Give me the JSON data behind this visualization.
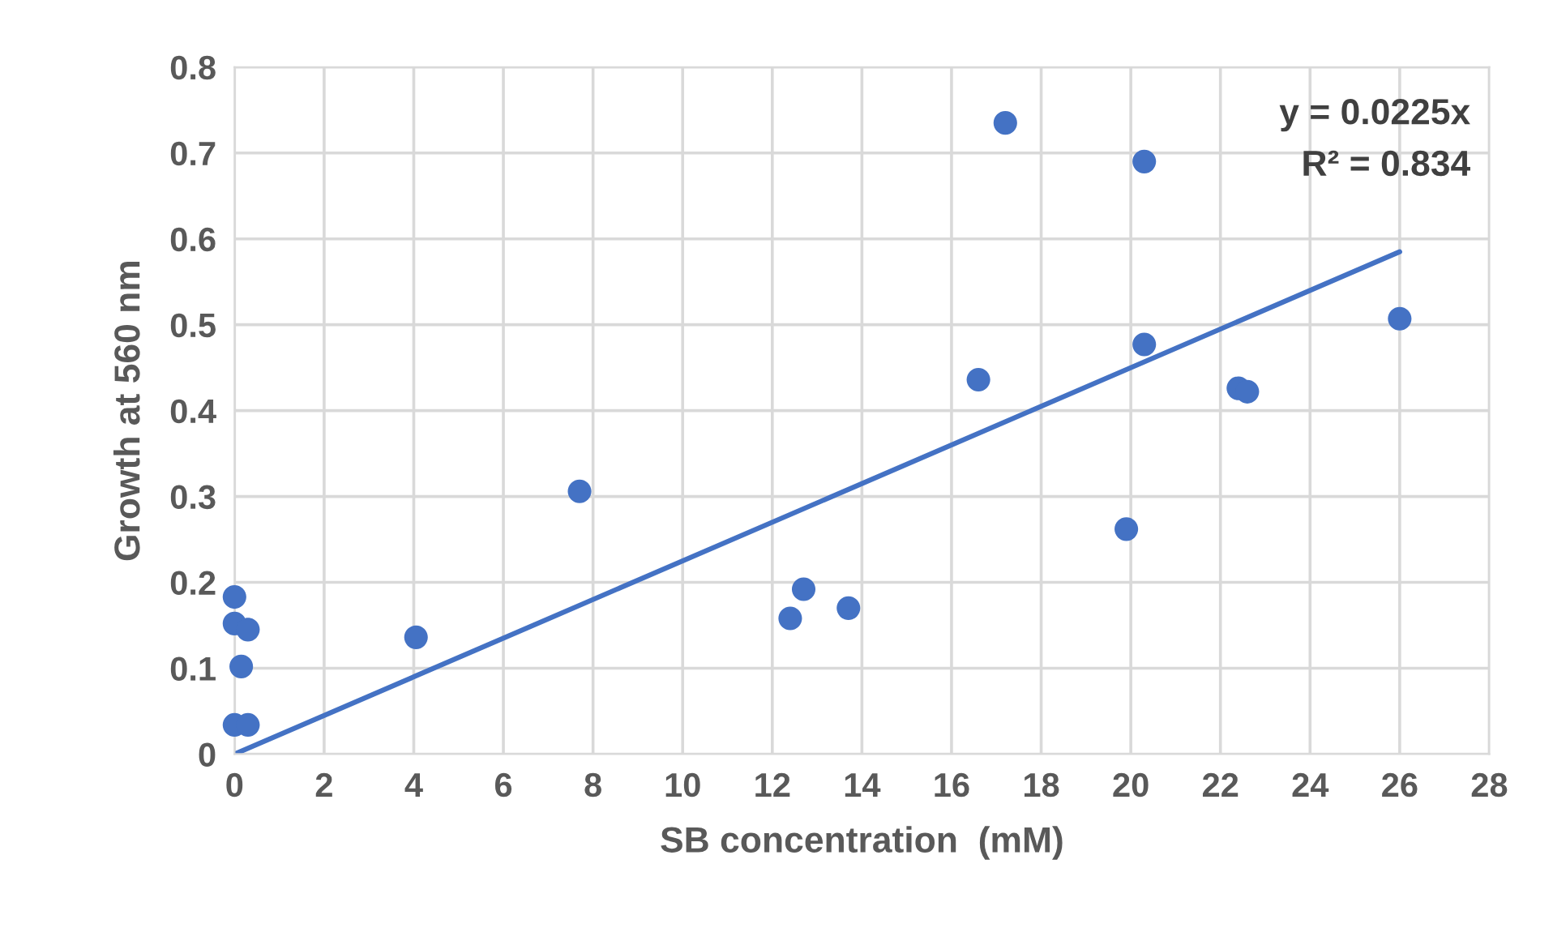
{
  "chart_data": {
    "type": "scatter",
    "xlabel": "SB concentration  (mM)",
    "ylabel": "Growth at 560 nm",
    "xlim": [
      0,
      28
    ],
    "xticks": [
      0,
      2,
      4,
      6,
      8,
      10,
      12,
      14,
      16,
      18,
      20,
      22,
      24,
      26,
      28
    ],
    "ylim": [
      0,
      0.8
    ],
    "yticks": [
      0,
      0.1,
      0.2,
      0.3,
      0.4,
      0.5,
      0.6,
      0.7,
      0.8
    ],
    "grid": true,
    "marker": "circle",
    "series": [
      {
        "color": "#4472c4",
        "x": [
          0.0,
          0.0,
          0.3,
          0.15,
          0.0,
          0.3,
          4.05,
          7.7,
          12.4,
          12.7,
          13.7,
          16.6,
          17.2,
          19.9,
          20.3,
          20.3,
          22.4,
          22.6,
          26.0
        ],
        "values": [
          0.183,
          0.152,
          0.145,
          0.102,
          0.034,
          0.034,
          0.136,
          0.306,
          0.158,
          0.192,
          0.17,
          0.436,
          0.735,
          0.262,
          0.477,
          0.69,
          0.426,
          0.422,
          0.507
        ]
      },
      {
        "type": "line",
        "marker": "none",
        "color": "#4472c4",
        "x": [
          0,
          26
        ],
        "values": [
          0,
          0.585
        ]
      }
    ],
    "annotations": [
      "y = 0.0225x",
      "R² = 0.834"
    ]
  }
}
